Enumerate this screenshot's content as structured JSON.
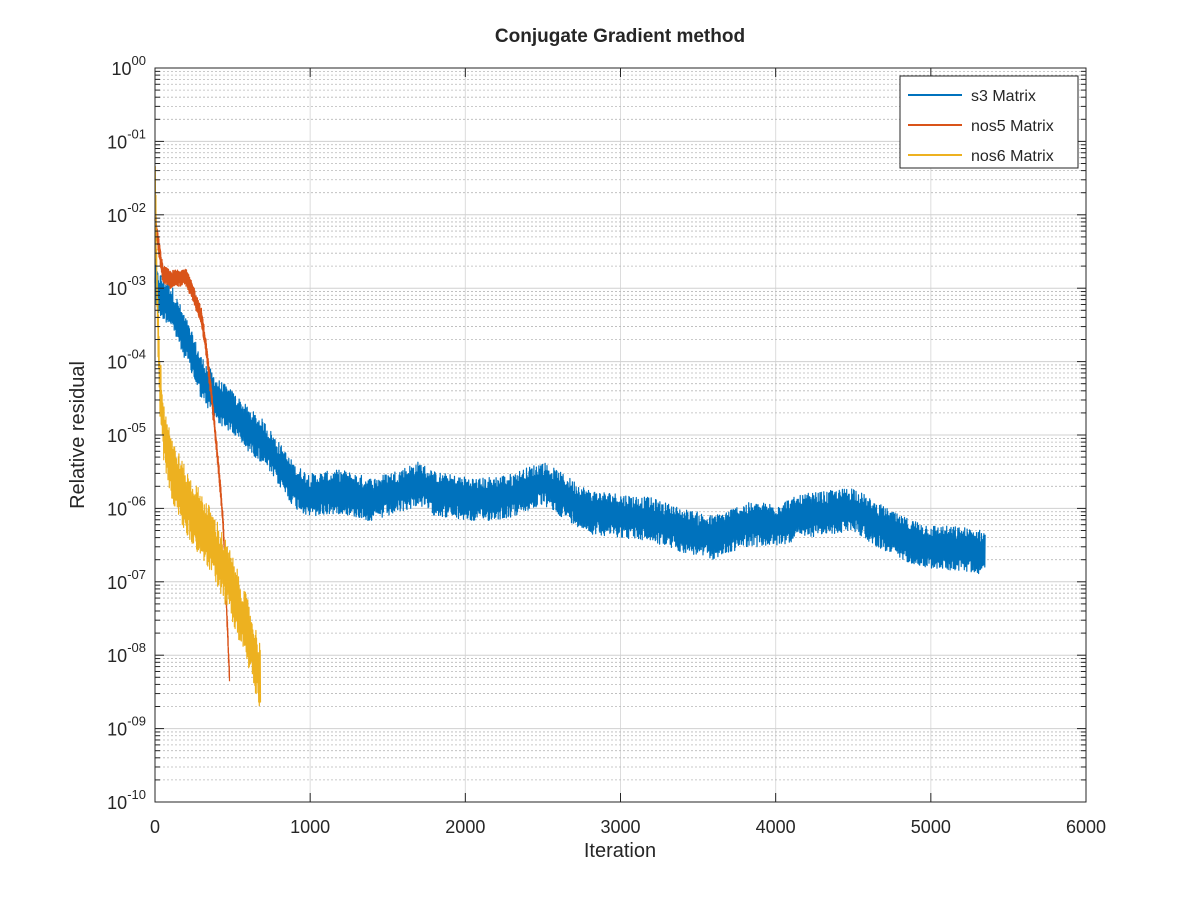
{
  "chart_data": {
    "type": "line",
    "title": "Conjugate Gradient method",
    "xlabel": "Iteration",
    "ylabel": "Relative residual",
    "xlim": [
      0,
      6000
    ],
    "ylim_log10": [
      -10,
      0
    ],
    "yscale": "log",
    "grid": true,
    "minor_grid": true,
    "x_ticks": [
      "0",
      "1000",
      "2000",
      "3000",
      "4000",
      "5000",
      "6000"
    ],
    "y_ticks": [
      {
        "base": "10",
        "exp": "00"
      },
      {
        "base": "10",
        "exp": "-01"
      },
      {
        "base": "10",
        "exp": "-02"
      },
      {
        "base": "10",
        "exp": "-03"
      },
      {
        "base": "10",
        "exp": "-04"
      },
      {
        "base": "10",
        "exp": "-05"
      },
      {
        "base": "10",
        "exp": "-06"
      },
      {
        "base": "10",
        "exp": "-07"
      },
      {
        "base": "10",
        "exp": "-08"
      },
      {
        "base": "10",
        "exp": "-09"
      },
      {
        "base": "10",
        "exp": "-10"
      }
    ],
    "legend_position": "top-right",
    "series": [
      {
        "name": "s3 Matrix",
        "color": "#0072bd",
        "noise_log10": 0.3,
        "points": [
          [
            0,
            0.002
          ],
          [
            10,
            0.0009
          ],
          [
            100,
            0.0006
          ],
          [
            200,
            0.0002
          ],
          [
            300,
            6e-05
          ],
          [
            400,
            3e-05
          ],
          [
            500,
            2e-05
          ],
          [
            600,
            1.2e-05
          ],
          [
            700,
            8e-06
          ],
          [
            800,
            4e-06
          ],
          [
            900,
            2e-06
          ],
          [
            1000,
            1.5e-06
          ],
          [
            1200,
            1.7e-06
          ],
          [
            1400,
            1.3e-06
          ],
          [
            1600,
            1.8e-06
          ],
          [
            1700,
            2.2e-06
          ],
          [
            1800,
            1.6e-06
          ],
          [
            1950,
            1.4e-06
          ],
          [
            2100,
            1.3e-06
          ],
          [
            2300,
            1.5e-06
          ],
          [
            2500,
            2.2e-06
          ],
          [
            2650,
            1.4e-06
          ],
          [
            2800,
            9e-07
          ],
          [
            3000,
            8e-07
          ],
          [
            3200,
            7e-07
          ],
          [
            3400,
            5e-07
          ],
          [
            3600,
            4e-07
          ],
          [
            3800,
            6e-07
          ],
          [
            4000,
            6e-07
          ],
          [
            4200,
            8e-07
          ],
          [
            4400,
            9e-07
          ],
          [
            4500,
            1e-06
          ],
          [
            4600,
            7e-07
          ],
          [
            4800,
            4e-07
          ],
          [
            5000,
            3e-07
          ],
          [
            5200,
            2.8e-07
          ],
          [
            5350,
            2.5e-07
          ]
        ]
      },
      {
        "name": "nos5 Matrix",
        "color": "#d95319",
        "noise_log10": 0.12,
        "points": [
          [
            0,
            0.01
          ],
          [
            15,
            0.005
          ],
          [
            50,
            0.0016
          ],
          [
            100,
            0.0013
          ],
          [
            150,
            0.0014
          ],
          [
            200,
            0.0014
          ],
          [
            250,
            0.0008
          ],
          [
            300,
            0.0004
          ],
          [
            330,
            0.00015
          ],
          [
            360,
            4e-05
          ],
          [
            390,
            1e-05
          ],
          [
            420,
            2e-06
          ],
          [
            440,
            6e-07
          ],
          [
            460,
            5e-08
          ],
          [
            480,
            5e-09
          ]
        ]
      },
      {
        "name": "nos6 Matrix",
        "color": "#edb120",
        "noise_log10": 0.45,
        "points": [
          [
            0,
            0.05
          ],
          [
            10,
            0.002
          ],
          [
            30,
            5e-05
          ],
          [
            60,
            1e-05
          ],
          [
            120,
            3e-06
          ],
          [
            200,
            1.2e-06
          ],
          [
            300,
            6e-07
          ],
          [
            400,
            2.5e-07
          ],
          [
            500,
            8e-08
          ],
          [
            600,
            2e-08
          ],
          [
            680,
            5e-09
          ]
        ]
      }
    ]
  }
}
